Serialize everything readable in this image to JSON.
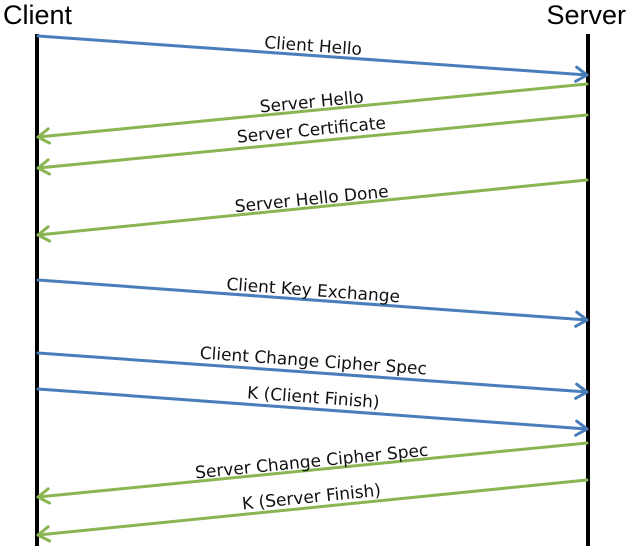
{
  "participants": {
    "client": "Client",
    "server": "Server"
  },
  "colors": {
    "client_to_server": "#4a7ebb",
    "server_to_client": "#8ab553"
  },
  "messages": [
    {
      "label": "Client Hello",
      "direction": "client-to-server"
    },
    {
      "label": "Server Hello",
      "direction": "server-to-client"
    },
    {
      "label": "Server Certificate",
      "direction": "server-to-client"
    },
    {
      "label": "Server Hello Done",
      "direction": "server-to-client"
    },
    {
      "label": "Client Key Exchange",
      "direction": "client-to-server"
    },
    {
      "label": "Client Change Cipher Spec",
      "direction": "client-to-server"
    },
    {
      "label": "K (Client Finish)",
      "direction": "client-to-server"
    },
    {
      "label": "Server Change Cipher Spec",
      "direction": "server-to-client"
    },
    {
      "label": "K (Server Finish)",
      "direction": "server-to-client"
    }
  ]
}
